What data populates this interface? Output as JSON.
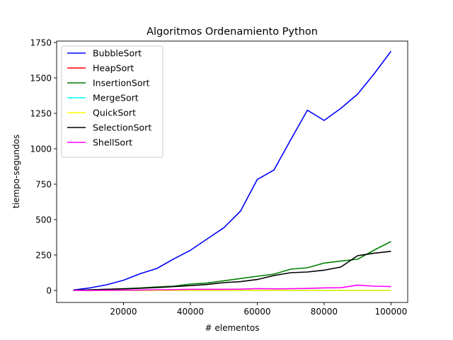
{
  "chart_data": {
    "type": "line",
    "title": "Algoritmos Ordenamiento Python",
    "xlabel": "# elementos",
    "ylabel": "tiempo-segundos",
    "xlim": [
      0,
      105000
    ],
    "ylim": [
      -85,
      1760
    ],
    "x_ticks": [
      20000,
      40000,
      60000,
      80000,
      100000
    ],
    "y_ticks": [
      0,
      250,
      500,
      750,
      1000,
      1250,
      1500,
      1750
    ],
    "x_tick_labels": [
      "20000",
      "40000",
      "60000",
      "80000",
      "100000"
    ],
    "y_tick_labels": [
      "0",
      "250",
      "500",
      "750",
      "1000",
      "1250",
      "1500",
      "1750"
    ],
    "grid": false,
    "legend_position": "top-left",
    "x": [
      5000,
      10000,
      15000,
      20000,
      25000,
      30000,
      35000,
      40000,
      45000,
      50000,
      55000,
      60000,
      65000,
      70000,
      75000,
      80000,
      85000,
      90000,
      95000,
      100000
    ],
    "series": [
      {
        "name": "BubbleSort",
        "color": "#0000ff",
        "values": [
          3,
          18,
          40,
          72,
          118,
          155,
          222,
          283,
          363,
          442,
          560,
          783,
          850,
          1063,
          1272,
          1200,
          1285,
          1385,
          1530,
          1688
        ]
      },
      {
        "name": "HeapSort",
        "color": "#ff0000",
        "values": [
          0,
          0,
          0,
          0,
          0,
          0,
          0,
          0,
          0,
          0,
          0,
          0,
          0,
          0,
          0,
          0,
          0,
          0,
          0,
          0
        ]
      },
      {
        "name": "InsertionSort",
        "color": "#008000",
        "values": [
          1,
          4,
          8,
          12,
          17,
          25,
          30,
          45,
          52,
          68,
          84,
          100,
          115,
          150,
          160,
          193,
          207,
          220,
          285,
          345
        ]
      },
      {
        "name": "MergeSort",
        "color": "#00ffff",
        "values": [
          0,
          0,
          0,
          0,
          0,
          0,
          0,
          0,
          0,
          0,
          0,
          0,
          0,
          0,
          0,
          0,
          0,
          0,
          0,
          0
        ]
      },
      {
        "name": "QuickSort",
        "color": "#ffff00",
        "values": [
          0,
          0,
          0,
          0,
          0,
          0,
          0,
          0,
          0,
          0,
          0,
          0,
          0,
          0,
          0,
          0,
          0,
          0,
          0,
          0
        ]
      },
      {
        "name": "SelectionSort",
        "color": "#000000",
        "values": [
          1,
          4,
          8,
          11,
          15,
          20,
          27,
          34,
          42,
          55,
          62,
          77,
          105,
          125,
          130,
          143,
          165,
          245,
          263,
          276
        ]
      },
      {
        "name": "ShellSort",
        "color": "#ff00ff",
        "values": [
          0,
          0,
          1,
          2,
          3,
          5,
          6,
          8,
          8,
          8,
          9,
          13,
          11,
          12,
          14,
          18,
          19,
          37,
          30,
          27
        ]
      }
    ]
  }
}
